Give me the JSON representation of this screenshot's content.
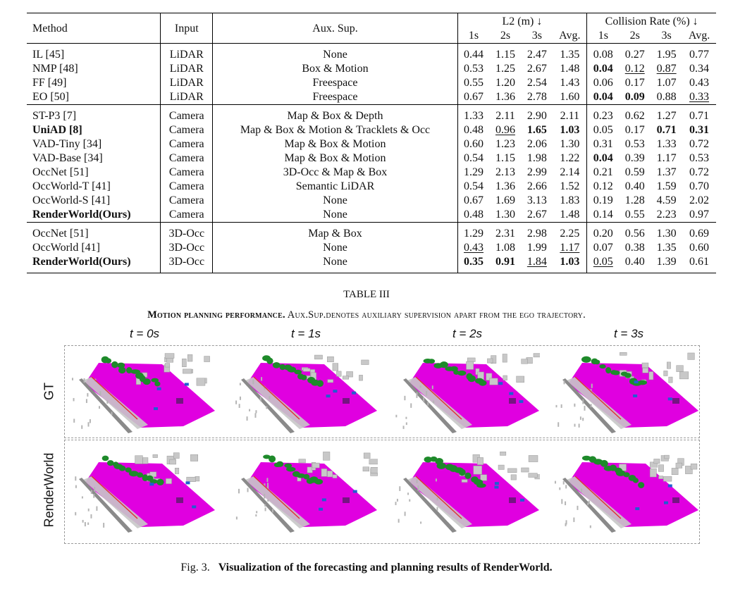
{
  "table": {
    "header": {
      "method": "Method",
      "input": "Input",
      "aux": "Aux. Sup.",
      "l2_group": "L2 (m) ↓",
      "cr_group": "Collision Rate (%) ↓",
      "sub": [
        "1s",
        "2s",
        "3s",
        "Avg."
      ]
    },
    "groups": [
      [
        {
          "method": "IL [45]",
          "input": "LiDAR",
          "aux": "None",
          "l2": [
            "0.44",
            "1.15",
            "2.47",
            "1.35"
          ],
          "cr": [
            "0.08",
            "0.27",
            "1.95",
            "0.77"
          ]
        },
        {
          "method": "NMP [48]",
          "input": "LiDAR",
          "aux": "Box & Motion",
          "l2": [
            "0.53",
            "1.25",
            "2.67",
            "1.48"
          ],
          "cr": [
            "0.04",
            "0.12",
            "0.87",
            "0.34"
          ]
        },
        {
          "method": "FF [49]",
          "input": "LiDAR",
          "aux": "Freespace",
          "l2": [
            "0.55",
            "1.20",
            "2.54",
            "1.43"
          ],
          "cr": [
            "0.06",
            "0.17",
            "1.07",
            "0.43"
          ]
        },
        {
          "method": "EO [50]",
          "input": "LiDAR",
          "aux": "Freespace",
          "l2": [
            "0.67",
            "1.36",
            "2.78",
            "1.60"
          ],
          "cr": [
            "0.04",
            "0.09",
            "0.88",
            "0.33"
          ]
        }
      ],
      [
        {
          "method": "ST-P3 [7]",
          "input": "Camera",
          "aux": "Map & Box & Depth",
          "l2": [
            "1.33",
            "2.11",
            "2.90",
            "2.11"
          ],
          "cr": [
            "0.23",
            "0.62",
            "1.27",
            "0.71"
          ]
        },
        {
          "method": "UniAD [8]",
          "input": "Camera",
          "aux": "Map & Box & Motion & Tracklets & Occ",
          "l2": [
            "0.48",
            "0.96",
            "1.65",
            "1.03"
          ],
          "cr": [
            "0.05",
            "0.17",
            "0.71",
            "0.31"
          ]
        },
        {
          "method": "VAD-Tiny [34]",
          "input": "Camera",
          "aux": "Map & Box & Motion",
          "l2": [
            "0.60",
            "1.23",
            "2.06",
            "1.30"
          ],
          "cr": [
            "0.31",
            "0.53",
            "1.33",
            "0.72"
          ]
        },
        {
          "method": "VAD-Base [34]",
          "input": "Camera",
          "aux": "Map & Box & Motion",
          "l2": [
            "0.54",
            "1.15",
            "1.98",
            "1.22"
          ],
          "cr": [
            "0.04",
            "0.39",
            "1.17",
            "0.53"
          ]
        },
        {
          "method": "OccNet [51]",
          "input": "Camera",
          "aux": "3D-Occ & Map & Box",
          "l2": [
            "1.29",
            "2.13",
            "2.99",
            "2.14"
          ],
          "cr": [
            "0.21",
            "0.59",
            "1.37",
            "0.72"
          ]
        },
        {
          "method": "OccWorld-T [41]",
          "input": "Camera",
          "aux": "Semantic LiDAR",
          "l2": [
            "0.54",
            "1.36",
            "2.66",
            "1.52"
          ],
          "cr": [
            "0.12",
            "0.40",
            "1.59",
            "0.70"
          ]
        },
        {
          "method": "OccWorld-S [41]",
          "input": "Camera",
          "aux": "None",
          "l2": [
            "0.67",
            "1.69",
            "3.13",
            "1.83"
          ],
          "cr": [
            "0.19",
            "1.28",
            "4.59",
            "2.02"
          ]
        },
        {
          "method": "RenderWorld(Ours)",
          "input": "Camera",
          "aux": "None",
          "l2": [
            "0.48",
            "1.30",
            "2.67",
            "1.48"
          ],
          "cr": [
            "0.14",
            "0.55",
            "2.23",
            "0.97"
          ]
        }
      ],
      [
        {
          "method": "OccNet [51]",
          "input": "3D-Occ",
          "aux": "Map & Box",
          "l2": [
            "1.29",
            "2.31",
            "2.98",
            "2.25"
          ],
          "cr": [
            "0.20",
            "0.56",
            "1.30",
            "0.69"
          ]
        },
        {
          "method": "OccWorld [41]",
          "input": "3D-Occ",
          "aux": "None",
          "l2": [
            "0.43",
            "1.08",
            "1.99",
            "1.17"
          ],
          "cr": [
            "0.07",
            "0.38",
            "1.35",
            "0.60"
          ]
        },
        {
          "method": "RenderWorld(Ours)",
          "input": "3D-Occ",
          "aux": "None",
          "l2": [
            "0.35",
            "0.91",
            "1.84",
            "1.03"
          ],
          "cr": [
            "0.05",
            "0.40",
            "1.39",
            "0.61"
          ]
        }
      ]
    ],
    "bold": [
      "1-1-m",
      "1-1-l2-2",
      "1-1-l2-3",
      "1-1-cr-2",
      "1-1-cr-3",
      "0-1-cr-0",
      "0-3-cr-0",
      "0-3-cr-1",
      "1-3-cr-0",
      "1-7-m",
      "2-2-m",
      "2-2-l2-0",
      "2-2-l2-1",
      "2-2-l2-3"
    ],
    "underline": [
      "0-1-cr-1",
      "0-1-cr-2",
      "0-3-cr-3",
      "1-1-l2-1",
      "2-1-l2-0",
      "2-1-l2-3",
      "2-2-l2-2",
      "2-2-cr-0"
    ]
  },
  "table_caption": "TABLE III",
  "table_desc": {
    "lead": "Motion planning performance.",
    "rest": " Aux.Sup.denotes auxiliary supervision apart from the ego trajectory."
  },
  "figure": {
    "time_labels": [
      "t = 0s",
      "t = 1s",
      "t = 2s",
      "t = 3s"
    ],
    "row_labels": [
      "GT",
      "RenderWorld"
    ],
    "scene_colors": {
      "road": "#e000e0",
      "vegetation": "#1e8a2a",
      "building": "#c8c8c8",
      "vehicle": "#1f5fd0",
      "curb": "#8a8a8a",
      "sidewalk": "#5a1a6a"
    }
  },
  "fig_caption": {
    "label": "Fig. 3.",
    "text": "Visualization of the forecasting and planning results of RenderWorld."
  }
}
